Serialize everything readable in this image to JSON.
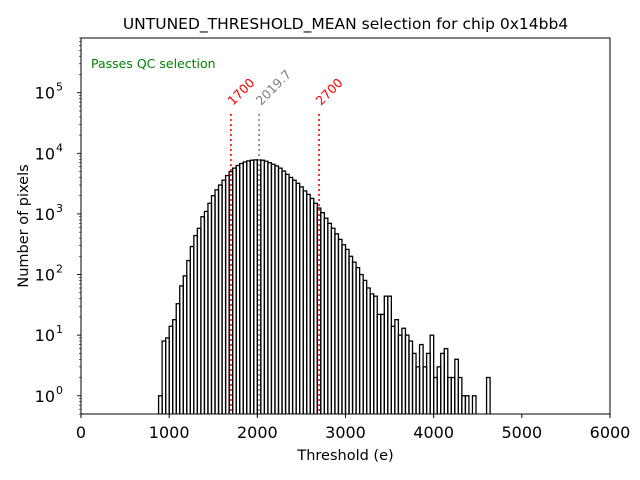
{
  "chart_data": {
    "type": "histogram",
    "title": "UNTUNED_THRESHOLD_MEAN selection for chip 0x14bb4",
    "xlabel": "Threshold (e)",
    "ylabel": "Number of pixels",
    "xlim": [
      0,
      6000
    ],
    "ylim": [
      0.5,
      800000
    ],
    "yscale": "log",
    "xticks": [
      0,
      1000,
      2000,
      3000,
      4000,
      5000,
      6000
    ],
    "xtick_labels": [
      "0",
      "1000",
      "2000",
      "3000",
      "4000",
      "5000",
      "6000"
    ],
    "yticks_exp": [
      0,
      1,
      2,
      3,
      4,
      5
    ],
    "ytick_base": "10",
    "bin_width": 40,
    "bin_start": 880,
    "counts": [
      1,
      8,
      9,
      14,
      18,
      33,
      65,
      95,
      170,
      290,
      440,
      580,
      900,
      1100,
      1500,
      2000,
      2500,
      3000,
      3600,
      4300,
      5000,
      5700,
      6300,
      6800,
      7200,
      7500,
      7700,
      7800,
      7800,
      7700,
      7400,
      7000,
      6600,
      6200,
      5700,
      5100,
      4500,
      4000,
      3600,
      3200,
      2800,
      2400,
      2100,
      1800,
      1500,
      1250,
      1050,
      850,
      700,
      580,
      470,
      380,
      310,
      260,
      200,
      160,
      130,
      100,
      80,
      60,
      48,
      44,
      22,
      22,
      44,
      44,
      14,
      18,
      10,
      13,
      10,
      8,
      5,
      3,
      7,
      3,
      5,
      10,
      2,
      3,
      5,
      6,
      2,
      2,
      4,
      2,
      1,
      1,
      0,
      1,
      0,
      0,
      0,
      0,
      0,
      0,
      0,
      0,
      0,
      0,
      0,
      0,
      0,
      0,
      0,
      0,
      0,
      0,
      0,
      0,
      0,
      0,
      0,
      0,
      0,
      0,
      0,
      0,
      0,
      0,
      0,
      0,
      0,
      0,
      0,
      0,
      0,
      0,
      0,
      0,
      0,
      0,
      0,
      0,
      0,
      0,
      0,
      0,
      0,
      0,
      0,
      0,
      0,
      0,
      0,
      0,
      0,
      0
    ],
    "extra_bins": [
      {
        "x": 4600,
        "count": 2
      }
    ],
    "vlines": [
      {
        "x": 1700,
        "label": "1700",
        "color": "#ff0000",
        "style": "dotted"
      },
      {
        "x": 2019.7,
        "label": "2019.7",
        "color": "#808080",
        "style": "dotted"
      },
      {
        "x": 2700,
        "label": "2700",
        "color": "#ff0000",
        "style": "dotted"
      }
    ],
    "annotation": {
      "text": "Passes QC selection",
      "color": "#008000",
      "position": "top-left"
    },
    "line_color": "#000000",
    "grid": false
  }
}
